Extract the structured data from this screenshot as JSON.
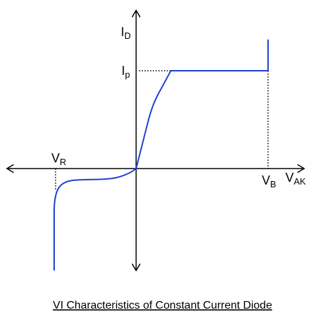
{
  "labels": {
    "current_axis": {
      "main": "I",
      "sub": "D"
    },
    "peak_current": {
      "main": "I",
      "sub": "p"
    },
    "reverse_voltage": {
      "main": "V",
      "sub": "R"
    },
    "breakdown_voltage": {
      "main": "V",
      "sub": "B"
    },
    "voltage_axis": {
      "main": "V",
      "sub": "AK"
    }
  },
  "caption": "VI Characteristics of Constant Current Diode"
}
